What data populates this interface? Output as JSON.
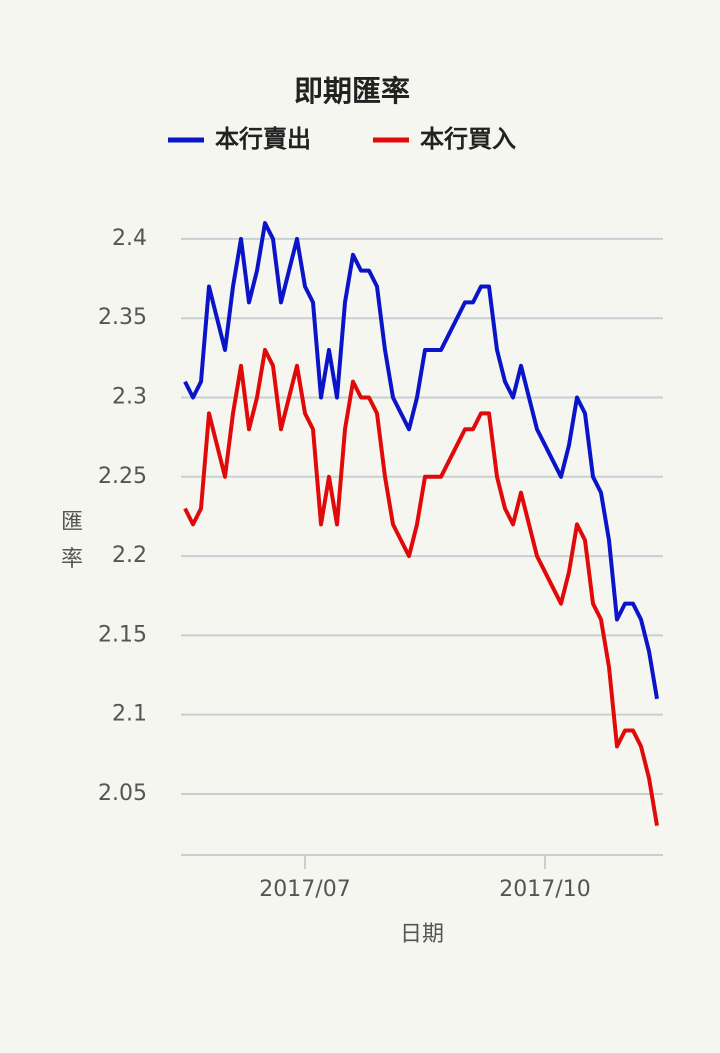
{
  "chart_data": {
    "type": "line",
    "title": "即期匯率",
    "x_label": "日期",
    "y_label": "匯率",
    "categories": [
      null,
      null,
      null,
      null,
      null,
      null,
      null,
      null,
      null,
      null,
      null,
      null,
      null,
      null,
      null,
      "2017/07",
      null,
      null,
      null,
      null,
      null,
      null,
      null,
      null,
      null,
      null,
      null,
      null,
      null,
      null,
      null,
      null,
      null,
      null,
      null,
      null,
      null,
      null,
      null,
      null,
      null,
      null,
      null,
      null,
      null,
      "2017/10",
      null,
      null,
      null,
      null,
      null,
      null,
      null,
      null,
      null,
      null,
      null,
      null,
      null,
      null
    ],
    "series": [
      {
        "name": "本行賣出",
        "color": "#0a14c8",
        "values": [
          2.31,
          2.3,
          2.31,
          2.37,
          2.35,
          2.33,
          2.37,
          2.4,
          2.36,
          2.38,
          2.41,
          2.4,
          2.36,
          2.38,
          2.4,
          2.37,
          2.36,
          2.3,
          2.33,
          2.3,
          2.36,
          2.39,
          2.38,
          2.38,
          2.37,
          2.33,
          2.3,
          2.29,
          2.28,
          2.3,
          2.33,
          2.33,
          2.33,
          2.34,
          2.35,
          2.36,
          2.36,
          2.37,
          2.37,
          2.33,
          2.31,
          2.3,
          2.32,
          2.3,
          2.28,
          2.27,
          2.26,
          2.25,
          2.27,
          2.3,
          2.29,
          2.25,
          2.24,
          2.21,
          2.16,
          2.17,
          2.17,
          2.16,
          2.14,
          2.11
        ]
      },
      {
        "name": "本行買入",
        "color": "#e00a0a",
        "values": [
          2.23,
          2.22,
          2.23,
          2.29,
          2.27,
          2.25,
          2.29,
          2.32,
          2.28,
          2.3,
          2.33,
          2.32,
          2.28,
          2.3,
          2.32,
          2.29,
          2.28,
          2.22,
          2.25,
          2.22,
          2.28,
          2.31,
          2.3,
          2.3,
          2.29,
          2.25,
          2.22,
          2.21,
          2.2,
          2.22,
          2.25,
          2.25,
          2.25,
          2.26,
          2.27,
          2.28,
          2.28,
          2.29,
          2.29,
          2.25,
          2.23,
          2.22,
          2.24,
          2.22,
          2.2,
          2.19,
          2.18,
          2.17,
          2.19,
          2.22,
          2.21,
          2.17,
          2.16,
          2.13,
          2.08,
          2.09,
          2.09,
          2.08,
          2.06,
          2.03
        ]
      }
    ],
    "ylim": [
      2.0115,
      2.4214
    ],
    "yticks": [
      2.05,
      2.1,
      2.15,
      2.2,
      2.25,
      2.3,
      2.35,
      2.4
    ],
    "grid": true,
    "legend": "top"
  }
}
